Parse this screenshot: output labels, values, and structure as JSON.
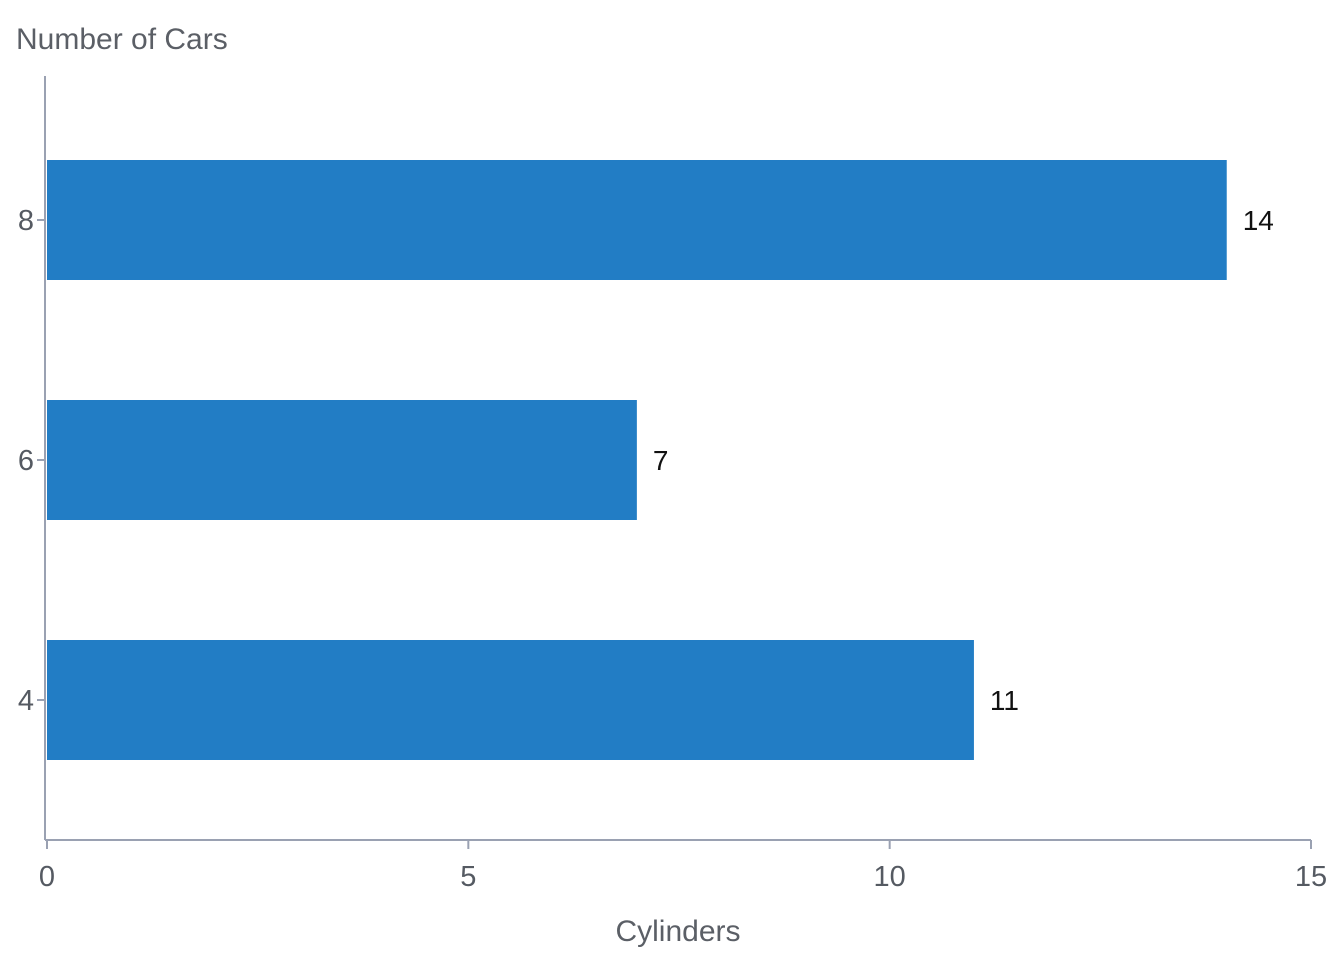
{
  "chart_data": {
    "type": "bar",
    "orientation": "horizontal",
    "categories": [
      "8",
      "6",
      "4"
    ],
    "values": [
      14,
      7,
      11
    ],
    "data_labels": [
      "14",
      "7",
      "11"
    ],
    "title": "",
    "category_axis_title": "Number of Cars",
    "value_axis_title": "Cylinders",
    "xlim": [
      0,
      15
    ],
    "x_ticks": [
      "0",
      "5",
      "10",
      "15"
    ],
    "grid": false,
    "legend": "none",
    "bar_color": "#227dc5"
  }
}
